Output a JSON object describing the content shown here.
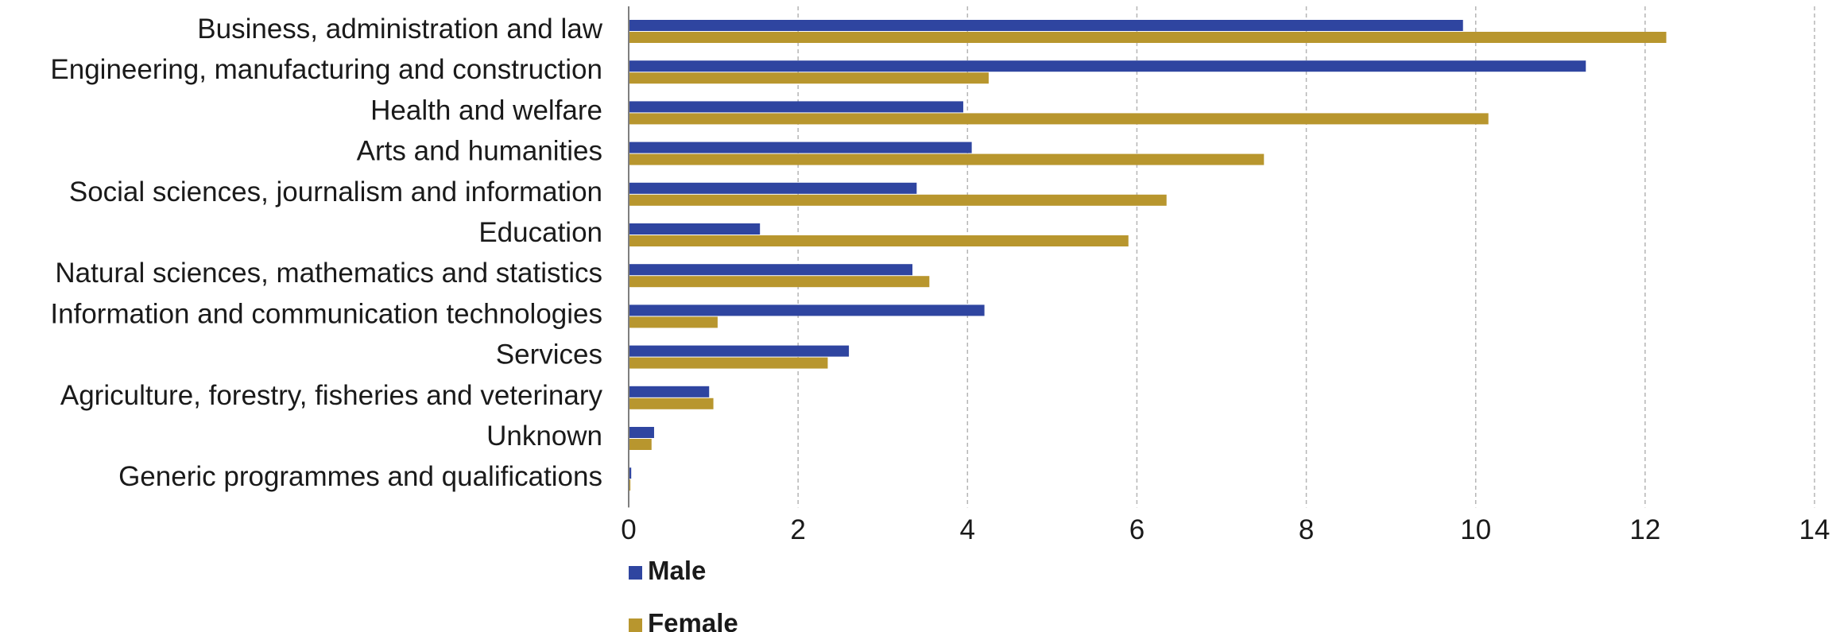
{
  "chart_data": {
    "type": "bar",
    "orientation": "horizontal",
    "categories": [
      "Business, administration and law",
      "Engineering, manufacturing and construction",
      "Health and welfare",
      "Arts and humanities",
      "Social sciences, journalism and information",
      "Education",
      "Natural sciences, mathematics and statistics",
      "Information and communication technologies",
      "Services",
      "Agriculture, forestry, fisheries and veterinary",
      "Unknown",
      "Generic programmes and qualifications"
    ],
    "series": [
      {
        "name": "Male",
        "color": "#2f45a0",
        "values": [
          9.85,
          11.3,
          3.95,
          4.05,
          3.4,
          1.55,
          3.35,
          4.2,
          2.6,
          0.95,
          0.3,
          0.03
        ]
      },
      {
        "name": "Female",
        "color": "#b8962e",
        "values": [
          12.25,
          4.25,
          10.15,
          7.5,
          6.35,
          5.9,
          3.55,
          1.05,
          2.35,
          1.0,
          0.27,
          0.02
        ]
      }
    ],
    "xlim": [
      0,
      14
    ],
    "xticks": [
      0,
      2,
      4,
      6,
      8,
      10,
      12,
      14
    ],
    "grid": true,
    "legend_position": "bottom-left"
  }
}
